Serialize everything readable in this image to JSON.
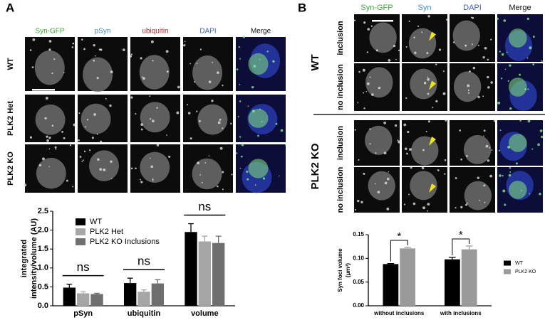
{
  "panel_a": {
    "label": "A",
    "columns": [
      {
        "text": "Syn-GFP",
        "color": "#3aa935"
      },
      {
        "text": "pSyn",
        "color": "#3b8fd0"
      },
      {
        "text": "ubiquitin",
        "color": "#c0272d"
      },
      {
        "text": "DAPI",
        "color": "#3b62c4"
      },
      {
        "text": "Merge",
        "color": "#111111"
      }
    ],
    "rows": [
      "WT",
      "PLK2 Het",
      "PLK2 KO"
    ]
  },
  "panel_b": {
    "label": "B",
    "columns": [
      {
        "text": "Syn-GFP",
        "color": "#3aa935"
      },
      {
        "text": "Syn",
        "color": "#3b8fd0"
      },
      {
        "text": "DAPI",
        "color": "#3b62c4"
      },
      {
        "text": "Merge",
        "color": "#111111"
      }
    ],
    "groups": [
      {
        "name": "WT",
        "rows": [
          "inclusion",
          "no inclusion"
        ]
      },
      {
        "name": "PLK2 KO",
        "rows": [
          "inclusion",
          "no inclusion"
        ]
      }
    ]
  },
  "chart_data": [
    {
      "type": "bar",
      "ylabel": [
        "integrated",
        "intensity/volume (AU)"
      ],
      "categories": [
        "pSyn",
        "ubiquitin",
        "volume"
      ],
      "series": [
        {
          "name": "WT",
          "color": "#000000",
          "values": [
            0.48,
            0.6,
            1.95
          ],
          "errors": [
            0.09,
            0.13,
            0.22
          ]
        },
        {
          "name": "PLK2 Het",
          "color": "#a6a6a6",
          "values": [
            0.33,
            0.37,
            1.7
          ],
          "errors": [
            0.04,
            0.05,
            0.14
          ]
        },
        {
          "name": "PLK2 KO Inclusions",
          "color": "#6e6e6e",
          "values": [
            0.31,
            0.59,
            1.66
          ],
          "errors": [
            0.02,
            0.1,
            0.18
          ]
        }
      ],
      "annotations": [
        "ns",
        "ns",
        "ns"
      ],
      "ylim": [
        0,
        2.5
      ],
      "yticks": [
        {
          "value": 0,
          "label": "0.0"
        },
        0.5,
        {
          "value": 1,
          "label": "1.0"
        },
        1.5,
        {
          "value": 2,
          "label": "2.0"
        },
        2.5
      ],
      "legend": "upper-left"
    },
    {
      "type": "bar",
      "ylabel": [
        "Syn foci volume",
        "(μm³)"
      ],
      "categories": [
        "without inclusions",
        "with inclusions"
      ],
      "series": [
        {
          "name": "WT",
          "color": "#000000",
          "values": [
            0.088,
            0.098
          ],
          "errors": [
            0.001,
            0.004
          ]
        },
        {
          "name": "PLK2 KO",
          "color": "#9a9a9a",
          "values": [
            0.121,
            0.119
          ],
          "errors": [
            0.002,
            0.007
          ]
        }
      ],
      "annotations": [
        "*",
        "*"
      ],
      "ylim": [
        0,
        0.15
      ],
      "yticks": [
        {
          "value": 0,
          "label": "0.00"
        },
        0.05,
        {
          "value": 0.1,
          "label": "0.10"
        },
        0.15
      ],
      "legend": "outside-right"
    }
  ]
}
